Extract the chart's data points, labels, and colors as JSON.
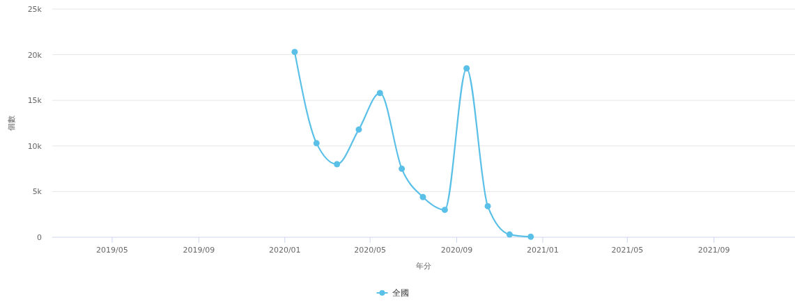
{
  "chart_data": {
    "type": "line",
    "xlabel": "年分",
    "ylabel": "個數",
    "x": [
      "2020-01-15",
      "2020-02-15",
      "2020-03-15",
      "2020-04-15",
      "2020-05-15",
      "2020-06-15",
      "2020-07-15",
      "2020-08-15",
      "2020-09-15",
      "2020-10-15",
      "2020-11-15",
      "2020-12-15"
    ],
    "series": [
      {
        "name": "全國",
        "color": "#5bc0e8",
        "values": [
          20300,
          10300,
          8000,
          11800,
          15800,
          7500,
          4400,
          3000,
          18500,
          3400,
          300,
          50
        ]
      }
    ],
    "xlim": [
      "2019-02-05",
      "2021-12-25"
    ],
    "xticks": [
      {
        "value": "2019-05-01",
        "label": "2019/05"
      },
      {
        "value": "2019-09-01",
        "label": "2019/09"
      },
      {
        "value": "2020-01-01",
        "label": "2020/01"
      },
      {
        "value": "2020-05-01",
        "label": "2020/05"
      },
      {
        "value": "2020-09-01",
        "label": "2020/09"
      },
      {
        "value": "2021-01-01",
        "label": "2021/01"
      },
      {
        "value": "2021-05-01",
        "label": "2021/05"
      },
      {
        "value": "2021-09-01",
        "label": "2021/09"
      }
    ],
    "ylim": [
      0,
      25000
    ],
    "yticks": [
      {
        "value": 0,
        "label": "0"
      },
      {
        "value": 5000,
        "label": "5k"
      },
      {
        "value": 10000,
        "label": "10k"
      },
      {
        "value": 15000,
        "label": "15k"
      },
      {
        "value": 20000,
        "label": "20k"
      },
      {
        "value": 25000,
        "label": "25k"
      }
    ],
    "grid": "y",
    "legend": "bottom",
    "marker": "circle",
    "line_style": "solid"
  }
}
